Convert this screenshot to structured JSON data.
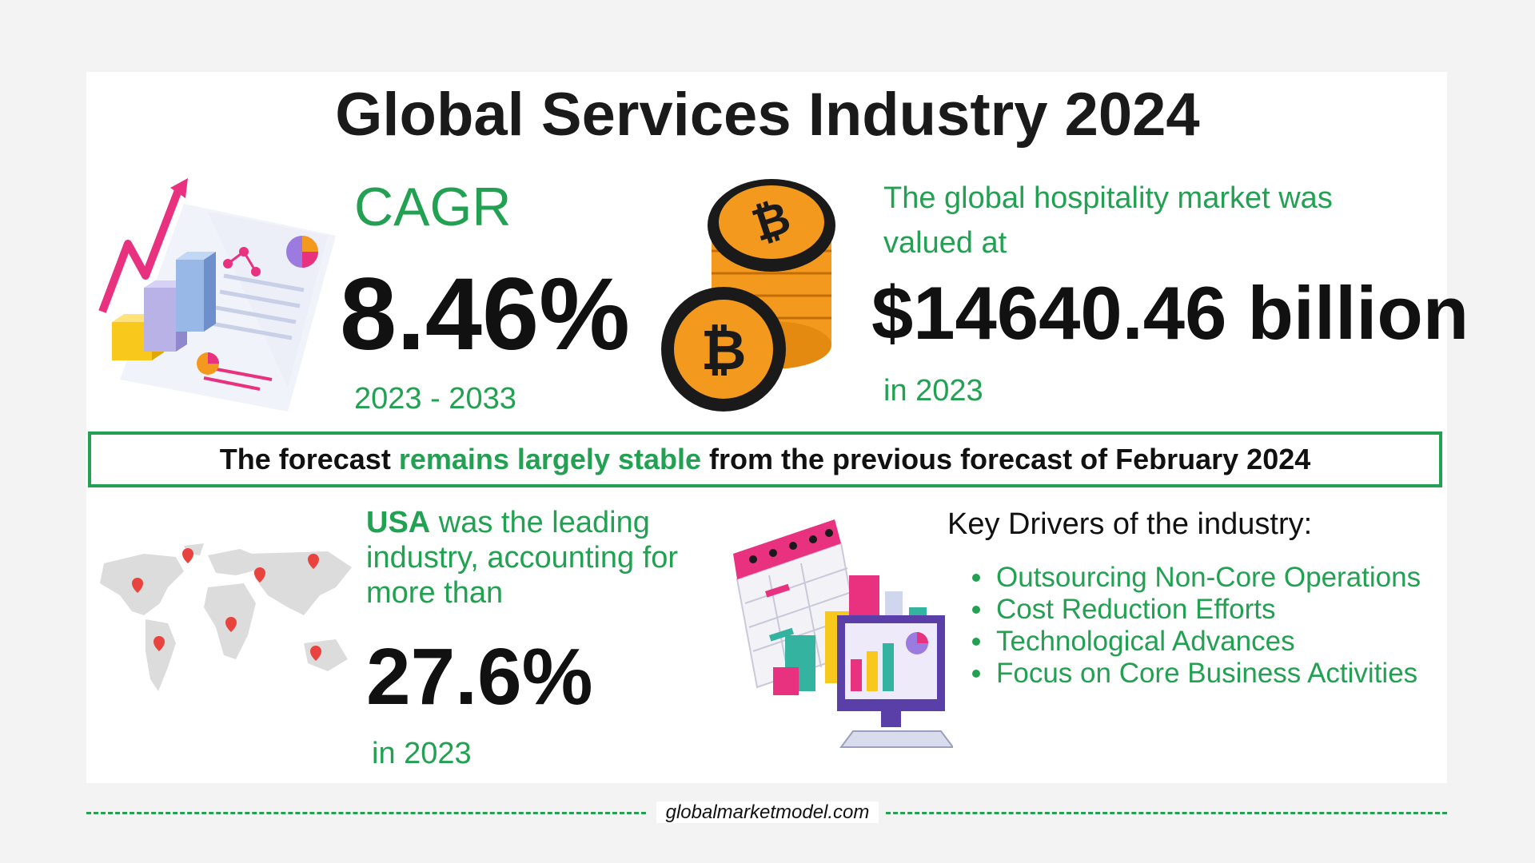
{
  "title": "Global Services Industry 2024",
  "cagr": {
    "label": "CAGR",
    "value": "8.46%",
    "period": "2023 - 2033"
  },
  "market": {
    "description": "The global hospitality market was valued at",
    "value": "$14640.46 billion",
    "year": "in 2023"
  },
  "forecast": {
    "prefix": "The forecast ",
    "highlight": "remains largely stable",
    "suffix": " from the previous forecast of February 2024"
  },
  "usa": {
    "country": "USA",
    "text": " was the leading industry, accounting for more than",
    "value": "27.6%",
    "year": "in 2023"
  },
  "drivers": {
    "title": "Key Drivers of the industry:",
    "items": [
      "Outsourcing Non-Core Operations",
      "Cost Reduction Efforts",
      "Technological Advances",
      "Focus on Core Business Activities"
    ]
  },
  "footer": {
    "site": "globalmarketmodel.com"
  },
  "colors": {
    "accent": "#22a152",
    "coin": "#f39a1e",
    "pink": "#e8327f"
  },
  "icons": {
    "chart_illustration": "growth-chart-icon",
    "coins": "bitcoin-coin-stack-icon",
    "map": "world-map-icon",
    "dashboard": "calendar-dashboard-icon"
  }
}
